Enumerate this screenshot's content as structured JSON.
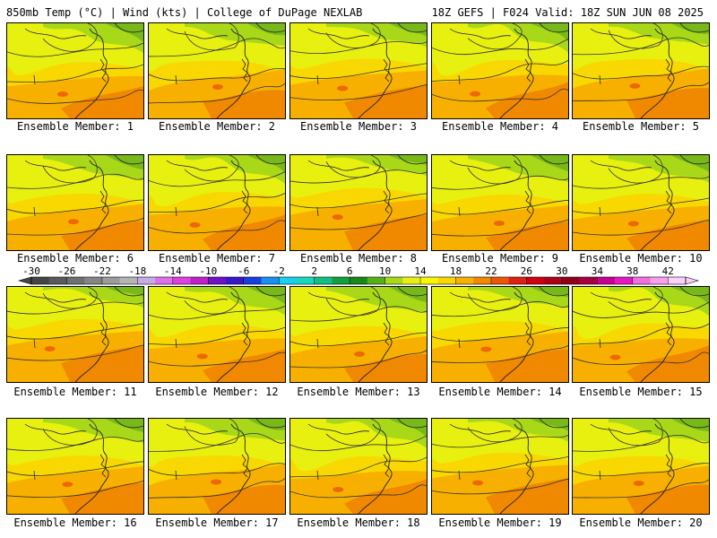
{
  "header": {
    "left": "850mb Temp (°C) | Wind (kts) | College of DuPage NEXLAB",
    "right": "18Z GEFS | F024 Valid: 18Z SUN JUN 08 2025"
  },
  "panels": [
    {
      "member": 1,
      "caption": "Ensemble Member: 1"
    },
    {
      "member": 2,
      "caption": "Ensemble Member: 2"
    },
    {
      "member": 3,
      "caption": "Ensemble Member: 3"
    },
    {
      "member": 4,
      "caption": "Ensemble Member: 4"
    },
    {
      "member": 5,
      "caption": "Ensemble Member: 5"
    },
    {
      "member": 6,
      "caption": "Ensemble Member: 6"
    },
    {
      "member": 7,
      "caption": "Ensemble Member: 7"
    },
    {
      "member": 8,
      "caption": "Ensemble Member: 8"
    },
    {
      "member": 9,
      "caption": "Ensemble Member: 9"
    },
    {
      "member": 10,
      "caption": "Ensemble Member: 10"
    },
    {
      "member": 11,
      "caption": "Ensemble Member: 11"
    },
    {
      "member": 12,
      "caption": "Ensemble Member: 12"
    },
    {
      "member": 13,
      "caption": "Ensemble Member: 13"
    },
    {
      "member": 14,
      "caption": "Ensemble Member: 14"
    },
    {
      "member": 15,
      "caption": "Ensemble Member: 15"
    },
    {
      "member": 16,
      "caption": "Ensemble Member: 16"
    },
    {
      "member": 17,
      "caption": "Ensemble Member: 17"
    },
    {
      "member": 18,
      "caption": "Ensemble Member: 18"
    },
    {
      "member": 19,
      "caption": "Ensemble Member: 19"
    },
    {
      "member": 20,
      "caption": "Ensemble Member: 20"
    }
  ],
  "colorbar": {
    "tick_labels": [
      "-30",
      "-26",
      "-22",
      "-18",
      "-14",
      "-10",
      "-6",
      "-2",
      "2",
      "6",
      "10",
      "14",
      "18",
      "22",
      "26",
      "30",
      "34",
      "38",
      "42"
    ],
    "colors": [
      "#454545",
      "#5a5a5a",
      "#707070",
      "#868686",
      "#9c9c9c",
      "#b4b4b4",
      "#c8aae8",
      "#e070e8",
      "#e040e0",
      "#c020c8",
      "#7010c8",
      "#3818c8",
      "#1840e0",
      "#1890f0",
      "#18d0f0",
      "#18d8c0",
      "#10c080",
      "#10a040",
      "#188818",
      "#58b018",
      "#a8d818",
      "#e8f010",
      "#f8f800",
      "#f8d800",
      "#f8b000",
      "#f08800",
      "#e85808",
      "#e02010",
      "#d00010",
      "#b00018",
      "#900018",
      "#a80040",
      "#c80090",
      "#e818c0",
      "#f070e0",
      "#f8a0f0",
      "#fcd0fa"
    ]
  },
  "map_colors": {
    "green": "#78b818",
    "lightgreen": "#a8d818",
    "yellow": "#e8f010",
    "gold": "#f8d800",
    "orange": "#f8b000",
    "deeporange": "#f08800",
    "red": "#e85808"
  }
}
